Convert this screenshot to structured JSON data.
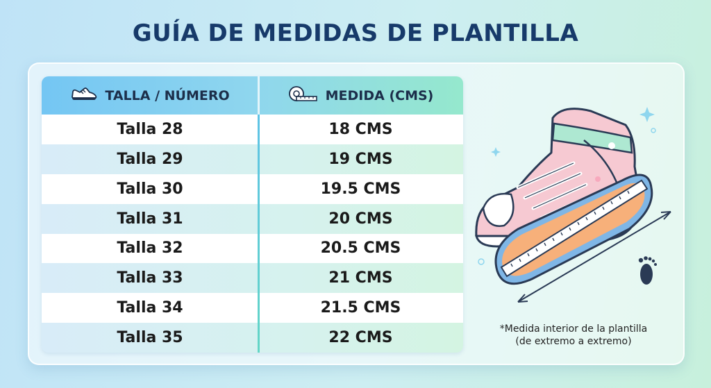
{
  "title": "GUÍA DE MEDIDAS DE PLANTILLA",
  "table": {
    "headers": {
      "size": "TALLA / NÚMERO",
      "measure": "MEDIDA (CMS)",
      "size_icon": "sneaker-icon",
      "measure_icon": "tape-measure-icon"
    },
    "rows": [
      {
        "size": "Talla 28",
        "measure": "18 CMS"
      },
      {
        "size": "Talla 29",
        "measure": "19 CMS"
      },
      {
        "size": "Talla 30",
        "measure": "19.5 CMS"
      },
      {
        "size": "Talla 31",
        "measure": "20 CMS"
      },
      {
        "size": "Talla 32",
        "measure": "20.5 CMS"
      },
      {
        "size": "Talla 33",
        "measure": "21 CMS"
      },
      {
        "size": "Talla 34",
        "measure": "21.5 CMS"
      },
      {
        "size": "Talla 35",
        "measure": "22 CMS"
      }
    ]
  },
  "note": {
    "line1": "*Medida interior de la plantilla",
    "line2": "(de extremo a extremo)"
  },
  "colors": {
    "title": "#173a6a",
    "header_start": "#74c6f3",
    "header_end": "#95e8cd",
    "divider": "#5fc3e6"
  }
}
